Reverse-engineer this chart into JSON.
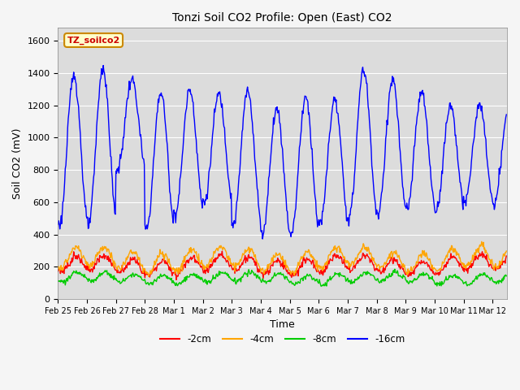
{
  "title": "Tonzi Soil CO2 Profile: Open (East) CO2",
  "xlabel": "Time",
  "ylabel": "Soil CO2 (mV)",
  "ylim": [
    0,
    1680
  ],
  "yticks": [
    0,
    200,
    400,
    600,
    800,
    1000,
    1200,
    1400,
    1600
  ],
  "plot_bg_color": "#dcdcdc",
  "fig_bg_color": "#f5f5f5",
  "legend_label": "TZ_soilco2",
  "series_labels": [
    "-2cm",
    "-4cm",
    "-8cm",
    "-16cm"
  ],
  "series_colors": [
    "#ff0000",
    "#ffa500",
    "#00cc00",
    "#0000ff"
  ],
  "line_width": 1.0
}
